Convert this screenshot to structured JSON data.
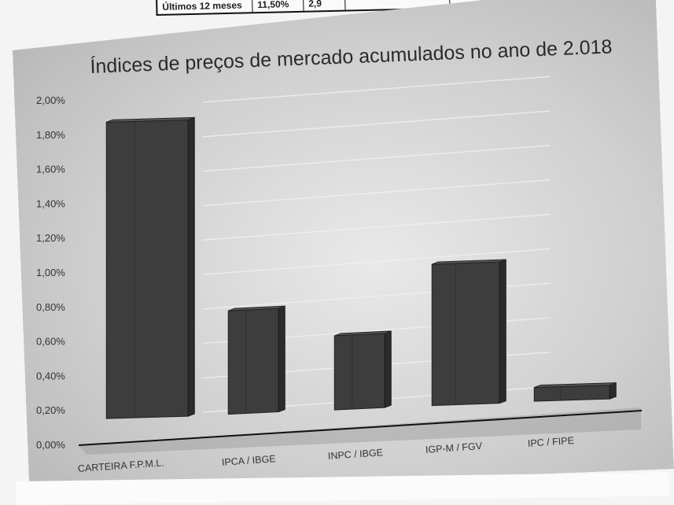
{
  "top_table": {
    "row_label": "Últimos 12 meses",
    "value_1": "11,50%",
    "value_2": "2,9"
  },
  "chart_data": {
    "type": "bar",
    "title": "Índices de preços de mercado acumulados no ano de 2.018",
    "xlabel": "",
    "ylabel": "",
    "categories": [
      "CARTEIRA F.P.M.L.",
      "IPCA / IBGE",
      "INPC / IBGE",
      "IGP-M / FGV",
      "IPC / FIPE"
    ],
    "values": [
      1.72,
      0.6,
      0.43,
      0.82,
      0.08
    ],
    "unit": "%",
    "ylim": [
      0,
      2
    ],
    "ytick_labels": [
      "0,00%",
      "0,20%",
      "0,40%",
      "0,60%",
      "0,80%",
      "1,00%",
      "1,20%",
      "1,40%",
      "1,60%",
      "1,80%",
      "2,00%"
    ],
    "grid": true,
    "bar_style": "3d",
    "colors": {
      "bar": "#3d3d3d",
      "bar_top": "#595959",
      "bar_side": "#2b2b2b",
      "grid": "#f0f0f0"
    }
  }
}
